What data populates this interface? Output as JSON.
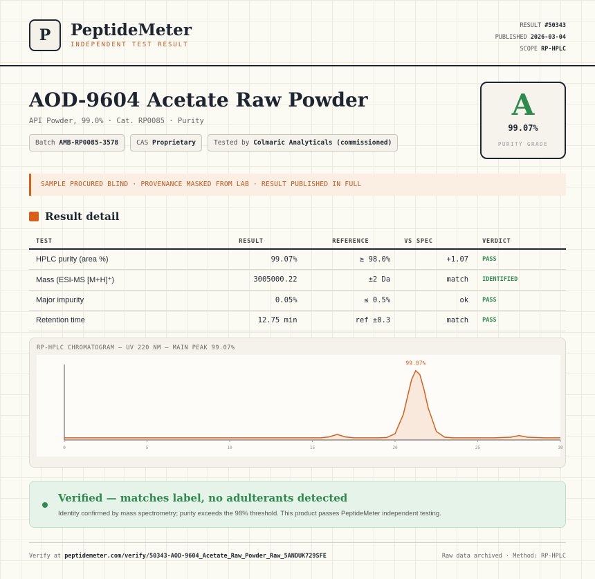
{
  "header": {
    "logo": "P",
    "brand": "PeptideMeter",
    "tagline": "INDEPENDENT TEST RESULT",
    "meta": [
      {
        "label": "RESULT",
        "value": "#50343"
      },
      {
        "label": "PUBLISHED",
        "value": "2026-03-04"
      },
      {
        "label": "SCOPE",
        "value": "RP-HPLC"
      }
    ]
  },
  "product": {
    "title": "AOD-9604 Acetate Raw Powder",
    "subtitle": "API Powder, 99.0% · Cat. RP0085 · Purity",
    "chips": [
      {
        "label": "Batch",
        "value": "AMB-RP0085-3578"
      },
      {
        "label": "CAS",
        "value": "Proprietary"
      },
      {
        "label": "Tested by",
        "value": "Colmaric Analyticals (commissioned)"
      }
    ]
  },
  "grade": {
    "letter": "A",
    "value": "99.07%",
    "label": "PURITY GRADE"
  },
  "notice": "SAMPLE PROCURED BLIND · PROVENANCE MASKED FROM LAB · RESULT PUBLISHED IN FULL",
  "section_title": "Result detail",
  "table": {
    "headers": [
      "TEST",
      "RESULT",
      "REFERENCE",
      "VS SPEC",
      "VERDICT"
    ],
    "rows": [
      [
        "HPLC purity (area %)",
        "99.07%",
        "≥ 98.0%",
        "+1.07",
        "PASS"
      ],
      [
        "Mass (ESI-MS [M+H]⁺)",
        "3005000.22",
        "±2 Da",
        "match",
        "IDENTIFIED"
      ],
      [
        "Major impurity",
        "0.05%",
        "≤ 0.5%",
        "ok",
        "PASS"
      ],
      [
        "Retention time",
        "12.75 min",
        "ref ±0.3",
        "match",
        "PASS"
      ]
    ]
  },
  "chromatogram": {
    "type": "line",
    "title": "RP-HPLC CHROMATOGRAM — UV 220 NM — MAIN PEAK 99.07%",
    "peak_label": "99.07%",
    "color": "#d9601a",
    "x": [
      0,
      2,
      4,
      6,
      8,
      10,
      12,
      14,
      15,
      15.5,
      16,
      16.5,
      17,
      17.5,
      18,
      19,
      19.5,
      20,
      20.5,
      20.75,
      21,
      21.25,
      21.5,
      21.75,
      22,
      22.5,
      23,
      23.5,
      24,
      25,
      26,
      27,
      27.5,
      28,
      29,
      30
    ],
    "values": [
      3,
      3,
      3,
      3,
      3,
      3,
      3,
      3,
      3,
      3,
      4.1,
      7.5,
      4.1,
      3,
      3,
      3,
      3.4,
      8.6,
      34.9,
      58.8,
      82.3,
      94.6,
      89.1,
      68.9,
      43.9,
      11.5,
      3.8,
      3,
      3,
      3,
      3,
      3.8,
      6,
      3.8,
      3,
      3
    ],
    "xlim": [
      0,
      30
    ],
    "xticks": [
      0,
      5,
      10,
      15,
      20,
      25,
      30
    ],
    "ylim": [
      0,
      100
    ]
  },
  "verified": {
    "title": "Verified — matches label, no adulterants detected",
    "text": "Identity confirmed by mass spectrometry; purity exceeds the 98% threshold. This product passes PeptideMeter independent testing."
  },
  "footer": {
    "verify_prefix": "Verify at",
    "url": "peptidemeter.com/verify/50343-AOD-9604_Acetate_Raw_Powder_Raw_5ANDUK729SFE",
    "right": "Raw data archived · Method: RP-HPLC"
  }
}
